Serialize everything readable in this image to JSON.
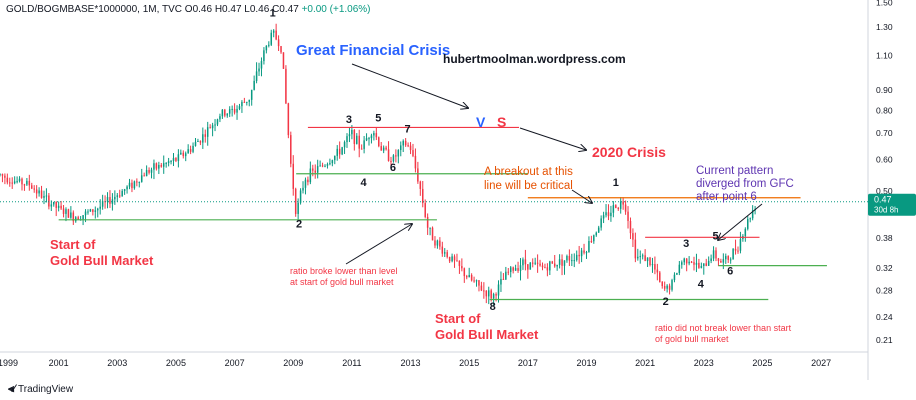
{
  "header": {
    "symbol": "GOLD/BOGMBASE*1000000, 1M, TVC",
    "ohlc": "O0.46 H0.47 L0.46 C0.47",
    "change": "+0.00 (+1.06%)"
  },
  "brand": {
    "name": "TradingView",
    "icon": "tradingview-logo-icon"
  },
  "colors": {
    "up": "#089981",
    "down": "#f23645",
    "red_text": "#f23645",
    "blue_text": "#2962ff",
    "orange": "#e65100",
    "purple": "#5e35b1",
    "green_line": "#4caf50",
    "red_line": "#f23645",
    "orange_line": "#ef6c00",
    "price_tag": "#089981"
  },
  "chart_data": {
    "type": "candlestick",
    "y_scale": "log",
    "xlim": [
      1999,
      2028.6
    ],
    "ylim": [
      0.196,
      1.52
    ],
    "x_ticks": [
      "1999",
      "2001",
      "2003",
      "2005",
      "2007",
      "2009",
      "2011",
      "2013",
      "2015",
      "2017",
      "2019",
      "2021",
      "2023",
      "2025",
      "2027"
    ],
    "y_ticks": [
      "1.50",
      "1.30",
      "1.10",
      "0.90",
      "0.80",
      "0.70",
      "0.60",
      "0.50",
      "0.38",
      "0.32",
      "0.28",
      "0.24",
      "0.21"
    ],
    "last_price": {
      "value": 0.47,
      "label": "0.47",
      "sub": "30d 8h"
    },
    "anchors": [
      [
        1999.0,
        0.55
      ],
      [
        1999.5,
        0.53
      ],
      [
        2000.0,
        0.52
      ],
      [
        2000.5,
        0.48
      ],
      [
        2001.0,
        0.45
      ],
      [
        2001.5,
        0.43
      ],
      [
        2002.0,
        0.44
      ],
      [
        2002.5,
        0.46
      ],
      [
        2003.0,
        0.49
      ],
      [
        2003.5,
        0.52
      ],
      [
        2004.0,
        0.56
      ],
      [
        2004.5,
        0.58
      ],
      [
        2005.0,
        0.6
      ],
      [
        2005.5,
        0.64
      ],
      [
        2006.0,
        0.7
      ],
      [
        2006.5,
        0.78
      ],
      [
        2007.0,
        0.8
      ],
      [
        2007.5,
        0.86
      ],
      [
        2008.0,
        1.12
      ],
      [
        2008.3,
        1.26
      ],
      [
        2008.6,
        1.15
      ],
      [
        2008.9,
        0.6
      ],
      [
        2009.1,
        0.44
      ],
      [
        2009.4,
        0.54
      ],
      [
        2010.0,
        0.58
      ],
      [
        2010.5,
        0.62
      ],
      [
        2011.0,
        0.7
      ],
      [
        2011.3,
        0.64
      ],
      [
        2011.7,
        0.72
      ],
      [
        2012.0,
        0.64
      ],
      [
        2012.4,
        0.6
      ],
      [
        2012.8,
        0.66
      ],
      [
        2013.0,
        0.64
      ],
      [
        2013.3,
        0.52
      ],
      [
        2013.6,
        0.4
      ],
      [
        2014.0,
        0.36
      ],
      [
        2014.5,
        0.33
      ],
      [
        2015.0,
        0.3
      ],
      [
        2015.5,
        0.28
      ],
      [
        2015.8,
        0.27
      ],
      [
        2016.3,
        0.31
      ],
      [
        2016.8,
        0.33
      ],
      [
        2017.5,
        0.32
      ],
      [
        2018.0,
        0.33
      ],
      [
        2018.5,
        0.34
      ],
      [
        2019.0,
        0.36
      ],
      [
        2019.5,
        0.42
      ],
      [
        2020.0,
        0.46
      ],
      [
        2020.3,
        0.47
      ],
      [
        2020.5,
        0.4
      ],
      [
        2020.7,
        0.34
      ],
      [
        2021.0,
        0.34
      ],
      [
        2021.3,
        0.32
      ],
      [
        2021.6,
        0.28
      ],
      [
        2021.9,
        0.29
      ],
      [
        2022.2,
        0.33
      ],
      [
        2022.5,
        0.34
      ],
      [
        2022.8,
        0.32
      ],
      [
        2023.0,
        0.32
      ],
      [
        2023.3,
        0.35
      ],
      [
        2023.6,
        0.33
      ],
      [
        2023.9,
        0.34
      ],
      [
        2024.2,
        0.37
      ],
      [
        2024.5,
        0.42
      ],
      [
        2024.8,
        0.47
      ]
    ],
    "lines": [
      {
        "name": "line-2001-support",
        "color": "green",
        "x": [
          2001.0,
          2013.9
        ],
        "y": 0.423
      },
      {
        "name": "line-2015-support",
        "color": "green",
        "x": [
          2015.7,
          2025.2
        ],
        "y": 0.266
      },
      {
        "name": "line-2009-breakout",
        "color": "green",
        "x": [
          2009.1,
          2017.0
        ],
        "y": 0.553
      },
      {
        "name": "line-2023-level",
        "color": "green",
        "x": [
          2023.5,
          2027.2
        ],
        "y": 0.324
      },
      {
        "name": "line-2010-top",
        "color": "red",
        "x": [
          2009.5,
          2016.7
        ],
        "y": 0.724
      },
      {
        "name": "line-2021-top",
        "color": "red",
        "x": [
          2021.0,
          2024.9
        ],
        "y": 0.382
      },
      {
        "name": "line-2019-breakout",
        "color": "orange",
        "x": [
          2017.0,
          2026.3
        ],
        "y": 0.481
      }
    ],
    "point_labels": [
      {
        "text": "1",
        "x": 2008.3,
        "y": 1.38
      },
      {
        "text": "2",
        "x": 2009.2,
        "y": 0.405
      },
      {
        "text": "3",
        "x": 2010.9,
        "y": 0.744
      },
      {
        "text": "4",
        "x": 2011.4,
        "y": 0.515
      },
      {
        "text": "5",
        "x": 2011.9,
        "y": 0.75
      },
      {
        "text": "6",
        "x": 2012.4,
        "y": 0.562
      },
      {
        "text": "7",
        "x": 2012.9,
        "y": 0.703
      },
      {
        "text": "8",
        "x": 2015.8,
        "y": 0.25
      },
      {
        "text": "1",
        "x": 2020.0,
        "y": 0.515
      },
      {
        "text": "2",
        "x": 2021.7,
        "y": 0.258
      },
      {
        "text": "3",
        "x": 2022.4,
        "y": 0.361
      },
      {
        "text": "4",
        "x": 2022.9,
        "y": 0.285
      },
      {
        "text": "5",
        "x": 2023.4,
        "y": 0.377
      },
      {
        "text": "6",
        "x": 2023.9,
        "y": 0.308
      }
    ],
    "annotations": {
      "gfc": "Great Financial Crisis",
      "site": "hubertmoolman.wordpress.com",
      "vs_v": "V",
      "vs_s": "S",
      "crisis_2020": "2020 Crisis",
      "breakout": [
        "A breakout at this",
        "line will be critical"
      ],
      "current": [
        "Current pattern",
        "diverged from GFC",
        "after point 6"
      ],
      "start1": [
        "Start of",
        "Gold Bull Market"
      ],
      "start2": [
        "Start of",
        "Gold Bull Market"
      ],
      "broke": [
        "ratio broke lower than level",
        "at start of gold bull market"
      ],
      "notbreak": [
        "ratio did not break lower than start",
        "of gold bull market"
      ]
    }
  }
}
